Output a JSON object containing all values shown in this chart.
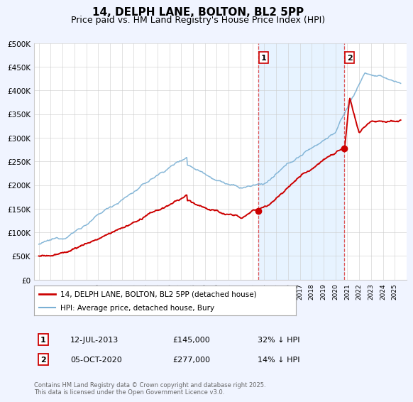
{
  "title": "14, DELPH LANE, BOLTON, BL2 5PP",
  "subtitle": "Price paid vs. HM Land Registry's House Price Index (HPI)",
  "ylim": [
    0,
    500000
  ],
  "yticks": [
    0,
    50000,
    100000,
    150000,
    200000,
    250000,
    300000,
    350000,
    400000,
    450000,
    500000
  ],
  "ytick_labels": [
    "£0",
    "£50K",
    "£100K",
    "£150K",
    "£200K",
    "£250K",
    "£300K",
    "£350K",
    "£400K",
    "£450K",
    "£500K"
  ],
  "sale1_date": 2013.53,
  "sale1_price": 145000,
  "sale2_date": 2020.76,
  "sale2_price": 277000,
  "red_color": "#cc0000",
  "blue_color": "#7ab0d4",
  "blue_fill_color": "#ddeeff",
  "vline_color": "#dd4444",
  "background_color": "#f0f4ff",
  "plot_bg_color": "#ffffff",
  "legend_label1": "14, DELPH LANE, BOLTON, BL2 5PP (detached house)",
  "legend_label2": "HPI: Average price, detached house, Bury",
  "footer": "Contains HM Land Registry data © Crown copyright and database right 2025.\nThis data is licensed under the Open Government Licence v3.0.",
  "title_fontsize": 11,
  "subtitle_fontsize": 9
}
